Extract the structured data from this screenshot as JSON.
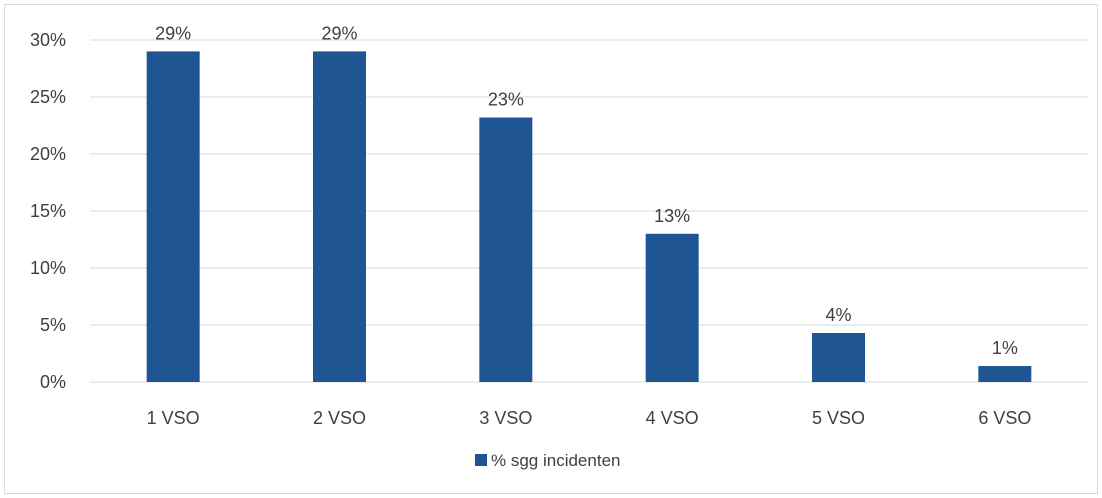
{
  "chart_data": {
    "type": "bar",
    "categories": [
      "1 VSO",
      "2 VSO",
      "3 VSO",
      "4 VSO",
      "5 VSO",
      "6 VSO"
    ],
    "series": [
      {
        "name": "% sgg incidenten",
        "values": [
          29.0,
          29.0,
          23.2,
          13.0,
          4.3,
          1.4
        ],
        "data_labels": [
          "29%",
          "29%",
          "23%",
          "13%",
          "4%",
          "1%"
        ],
        "color": "#1f5592"
      }
    ],
    "yticks": [
      "0%",
      "5%",
      "10%",
      "15%",
      "20%",
      "25%",
      "30%"
    ],
    "ylim": [
      0,
      30
    ],
    "grid": true,
    "legend": "bottom",
    "gridline_color": "#d9d9d9"
  }
}
